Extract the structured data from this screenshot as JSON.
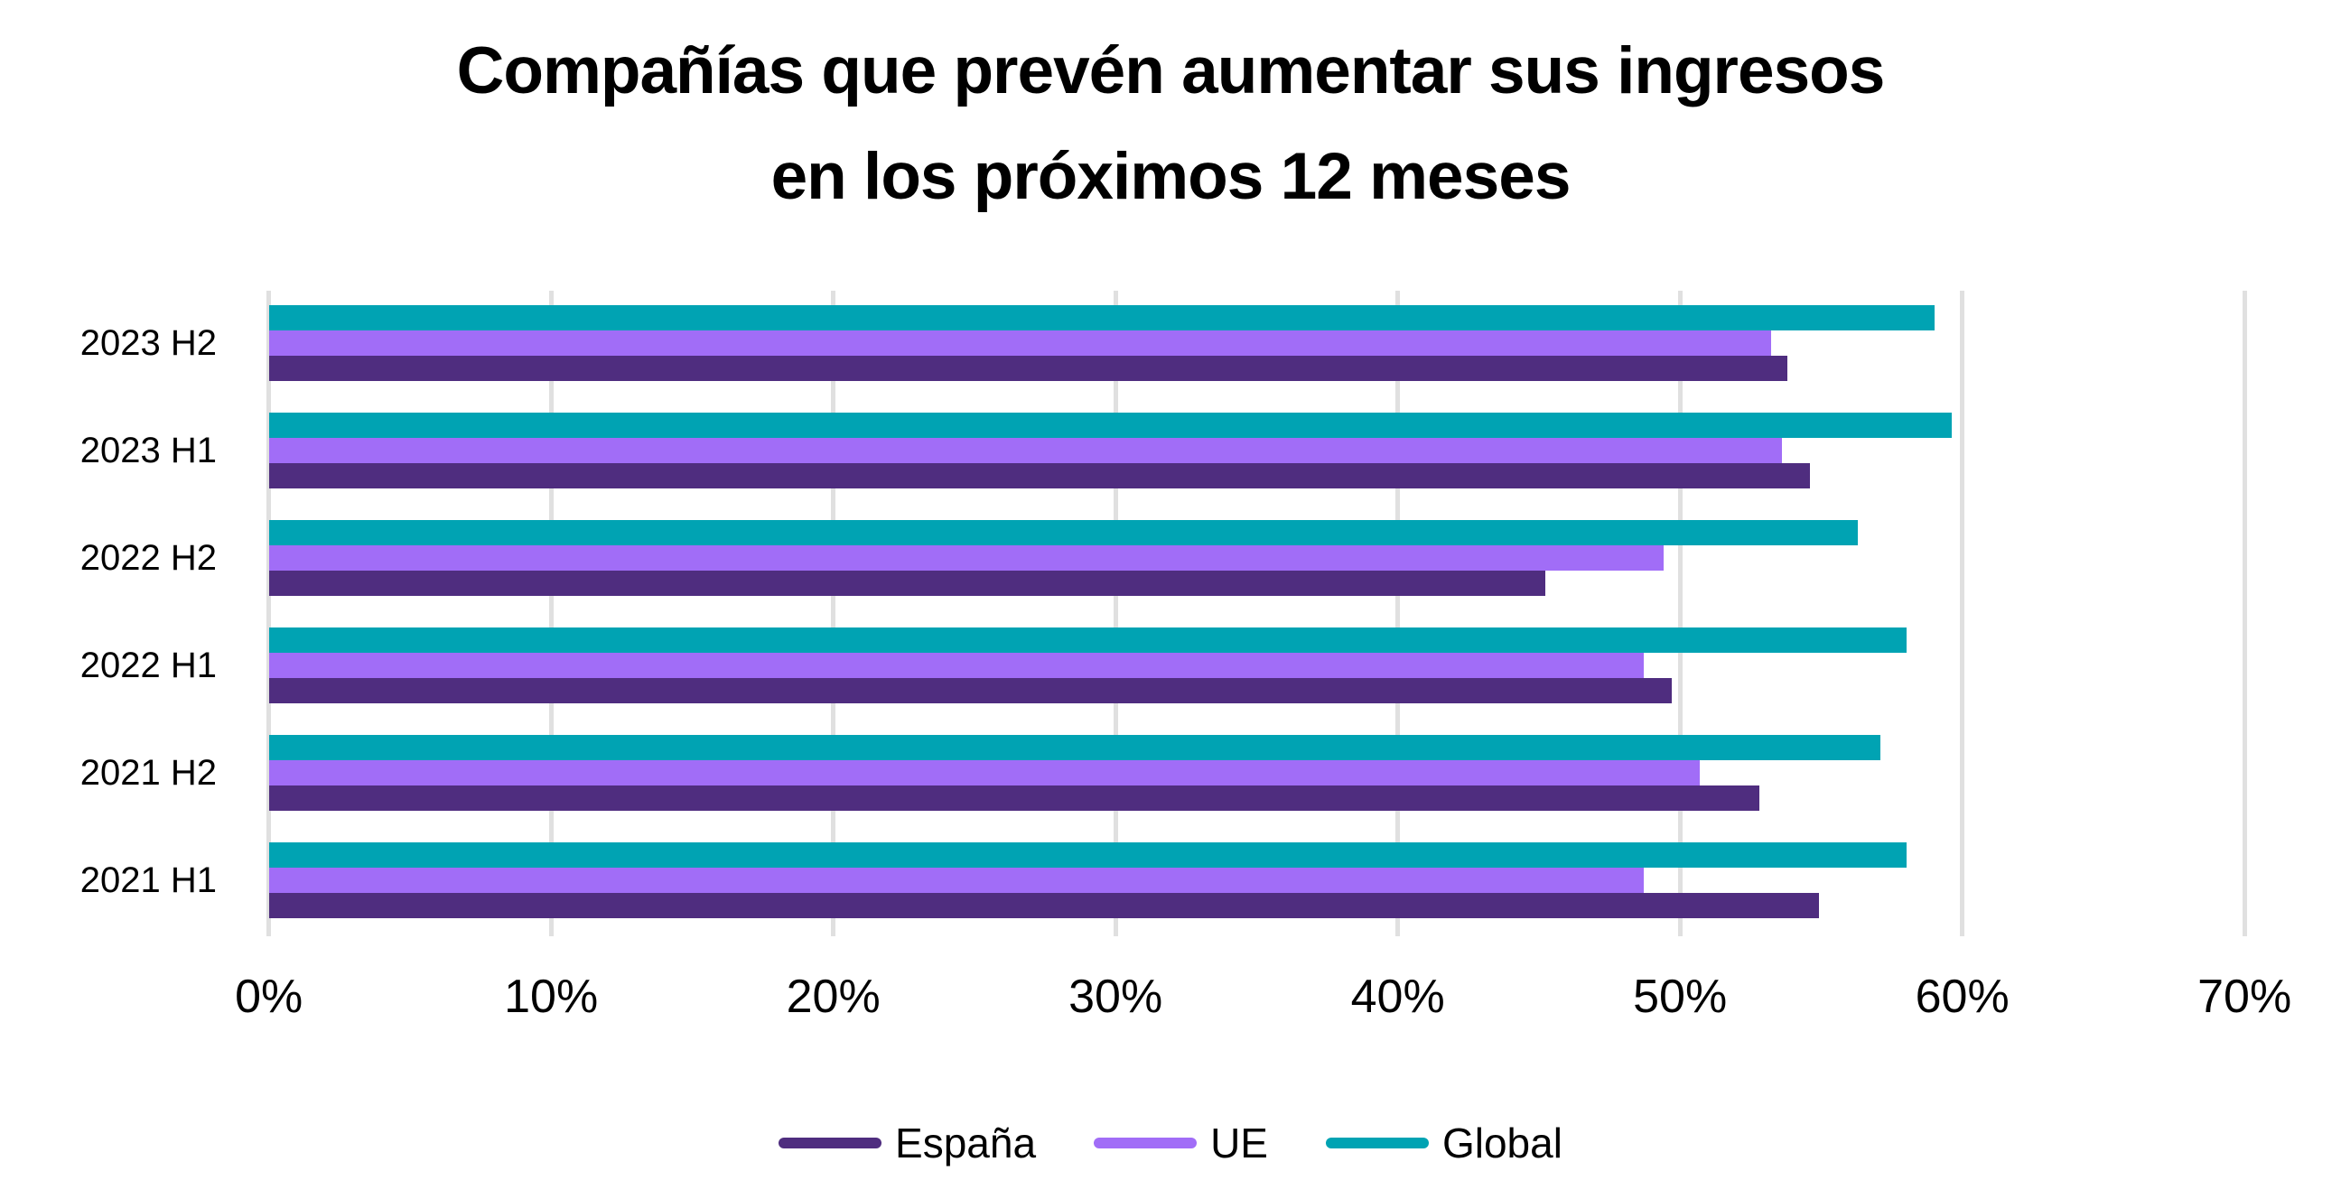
{
  "title": {
    "line1": "Compañías que prevén aumentar sus ingresos",
    "line2": "en los próximos 12 meses"
  },
  "chart_data": {
    "type": "bar",
    "orientation": "horizontal",
    "title": "Compañías que prevén aumentar sus ingresos en los próximos 12 meses",
    "categories": [
      "2023 H2",
      "2023 H1",
      "2022 H2",
      "2022 H1",
      "2021 H2",
      "2021 H1"
    ],
    "series": [
      {
        "name": "España",
        "color": "#4F2D7F",
        "values": [
          53.8,
          54.6,
          45.2,
          49.7,
          52.8,
          54.9
        ]
      },
      {
        "name": "UE",
        "color": "#A16DF7",
        "values": [
          53.2,
          53.6,
          49.4,
          48.7,
          50.7,
          48.7
        ]
      },
      {
        "name": "Global",
        "color": "#00A3B3",
        "values": [
          59.0,
          59.6,
          56.3,
          58.0,
          57.1,
          58.0
        ]
      }
    ],
    "bar_order_top_to_bottom": [
      "Global",
      "UE",
      "España"
    ],
    "x_axis": {
      "unit": "%",
      "min": 0,
      "max": 70,
      "tick_step": 10,
      "tick_labels": [
        "0%",
        "10%",
        "20%",
        "30%",
        "40%",
        "50%",
        "60%",
        "70%"
      ]
    },
    "grid": true,
    "gridline_color": "#e0e0e0",
    "legend_position": "bottom"
  }
}
